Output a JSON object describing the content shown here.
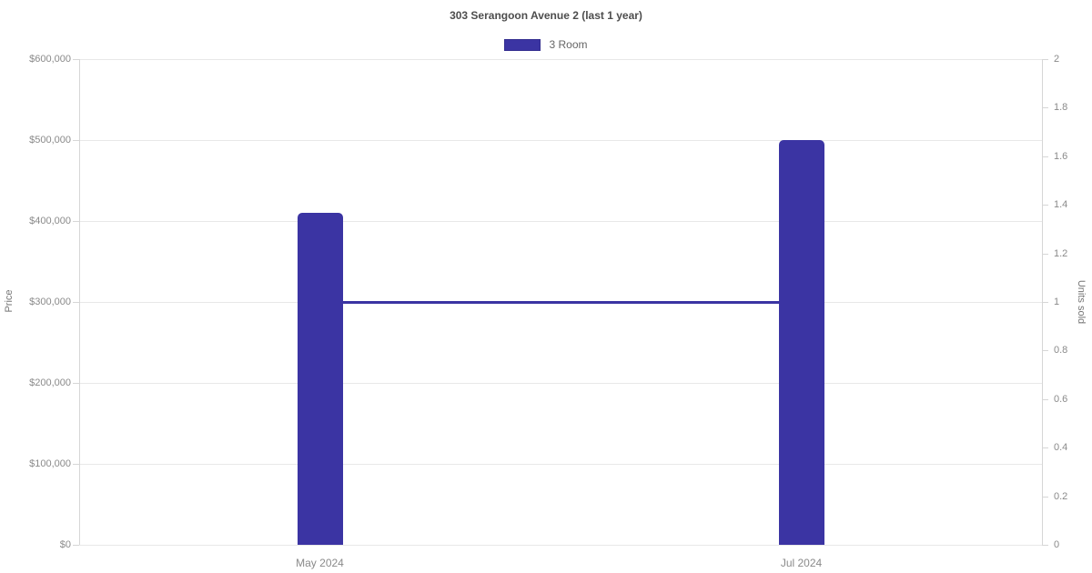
{
  "chart_data": {
    "type": "bar",
    "title": "303 Serangoon Avenue 2 (last 1 year)",
    "categories": [
      "May 2024",
      "Jul 2024"
    ],
    "series": [
      {
        "name": "3 Room",
        "type": "bar",
        "axis": "left",
        "values": [
          410000,
          500000
        ],
        "color": "#3b34a3"
      },
      {
        "name": "3 Room",
        "type": "line",
        "axis": "right",
        "values": [
          1,
          1
        ],
        "color": "#3b34a3"
      }
    ],
    "left_axis": {
      "label": "Price",
      "min": 0,
      "max": 600000,
      "tick_labels": [
        "$600,000",
        "$500,000",
        "$400,000",
        "$300,000",
        "$200,000",
        "$100,000",
        "$0"
      ]
    },
    "right_axis": {
      "label": "Units sold",
      "min": 0,
      "max": 2,
      "tick_labels": [
        "2",
        "1.8",
        "1.6",
        "1.4",
        "1.2",
        "1",
        "0.8",
        "0.6",
        "0.4",
        "0.2",
        "0"
      ]
    },
    "legend": [
      {
        "label": "3 Room",
        "color": "#3b34a3"
      }
    ],
    "grid": true,
    "legend_position": "top"
  },
  "colors": {
    "accent": "#3b34a3",
    "grid": "#e8e8e8",
    "axis": "#d6d6d6",
    "tick_text": "#8a8a8a",
    "title_text": "#4d4d4d",
    "label_text": "#666666"
  }
}
